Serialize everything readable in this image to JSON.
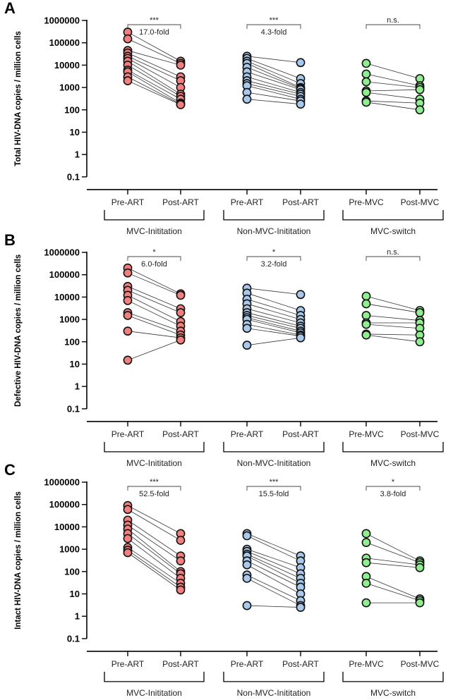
{
  "chart_data": [
    {
      "type": "scatter",
      "panel": "A",
      "ylabel": "Total HIV-DNA copies / million cells",
      "yscale": "log",
      "ylim": [
        0.1,
        1000000
      ],
      "yticks": [
        "0.1",
        "1",
        "10",
        "100",
        "1000",
        "10000",
        "100000",
        "1000000"
      ],
      "groups": [
        {
          "name": "MVC-Inititation",
          "color": "#f08080",
          "pre_label": "Pre-ART",
          "post_label": "Post-ART",
          "significance": "***",
          "fold": "17.0-fold",
          "pre": [
            300000,
            150000,
            45000,
            35000,
            25000,
            20000,
            15000,
            10000,
            6000,
            5000,
            3000,
            2000
          ],
          "post": [
            15000,
            12000,
            10000,
            3000,
            2000,
            1000,
            500,
            400,
            300,
            200,
            180,
            170
          ]
        },
        {
          "name": "Non-MVC-Inititation",
          "color": "#a8c8ec",
          "pre_label": "Pre-ART",
          "post_label": "Post-ART",
          "significance": "***",
          "fold": "4.3-fold",
          "pre": [
            25000,
            20000,
            15000,
            12000,
            8000,
            5000,
            3000,
            2000,
            1500,
            1200,
            600,
            300
          ],
          "post": [
            13000,
            2500,
            1500,
            1000,
            900,
            800,
            600,
            500,
            400,
            300,
            250,
            180
          ]
        },
        {
          "name": "MVC-switch",
          "color": "#90ee90",
          "pre_label": "Pre-MVC",
          "post_label": "Post-MVC",
          "significance": "n.s.",
          "fold": "",
          "pre": [
            12000,
            4000,
            1800,
            700,
            600,
            250,
            220
          ],
          "post": [
            2500,
            1200,
            1000,
            800,
            300,
            200,
            100
          ]
        }
      ]
    },
    {
      "type": "scatter",
      "panel": "B",
      "ylabel": "Defective HIV-DNA copies / million cells",
      "yscale": "log",
      "ylim": [
        0.1,
        1000000
      ],
      "yticks": [
        "0.1",
        "1",
        "10",
        "100",
        "1000",
        "10000",
        "100000",
        "1000000"
      ],
      "groups": [
        {
          "name": "MVC-Inititation",
          "color": "#f08080",
          "pre_label": "Pre-ART",
          "post_label": "Post-ART",
          "significance": "*",
          "fold": "6.0-fold",
          "pre": [
            200000,
            120000,
            30000,
            20000,
            12000,
            7000,
            2000,
            1500,
            300,
            15
          ],
          "post": [
            14000,
            12000,
            3000,
            2000,
            800,
            500,
            300,
            200,
            150,
            120
          ]
        },
        {
          "name": "Non-MVC-Inititation",
          "color": "#a8c8ec",
          "pre_label": "Pre-ART",
          "post_label": "Post-ART",
          "significance": "*",
          "fold": "3.2-fold",
          "pre": [
            25000,
            15000,
            8000,
            5000,
            3000,
            2000,
            1500,
            1200,
            1000,
            600,
            400,
            70
          ],
          "post": [
            13000,
            2500,
            1500,
            1000,
            700,
            500,
            400,
            300,
            250,
            200,
            180,
            150
          ]
        },
        {
          "name": "MVC-switch",
          "color": "#90ee90",
          "pre_label": "Pre-MVC",
          "post_label": "Post-MVC",
          "significance": "n.s.",
          "fold": "",
          "pre": [
            11000,
            5000,
            1500,
            700,
            600,
            220,
            200
          ],
          "post": [
            2500,
            2000,
            900,
            700,
            400,
            200,
            100
          ]
        }
      ]
    },
    {
      "type": "scatter",
      "panel": "C",
      "ylabel": "Intact HIV-DNA copies / million cells",
      "yscale": "log",
      "ylim": [
        0.1,
        1000000
      ],
      "yticks": [
        "0.1",
        "1",
        "10",
        "100",
        "1000",
        "10000",
        "100000",
        "1000000"
      ],
      "groups": [
        {
          "name": "MVC-Inititation",
          "color": "#f08080",
          "pre_label": "Pre-ART",
          "post_label": "Post-ART",
          "significance": "***",
          "fold": "52.5-fold",
          "pre": [
            90000,
            60000,
            20000,
            12000,
            8000,
            5000,
            3000,
            1200,
            900,
            700
          ],
          "post": [
            5000,
            2500,
            500,
            300,
            100,
            80,
            50,
            30,
            20,
            15
          ]
        },
        {
          "name": "Non-MVC-Inititation",
          "color": "#a8c8ec",
          "pre_label": "Pre-ART",
          "post_label": "Post-ART",
          "significance": "***",
          "fold": "15.5-fold",
          "pre": [
            5000,
            4000,
            1000,
            800,
            600,
            500,
            300,
            200,
            70,
            50,
            3
          ],
          "post": [
            500,
            300,
            150,
            80,
            50,
            30,
            20,
            10,
            5,
            3,
            2.5
          ]
        },
        {
          "name": "MVC-switch",
          "color": "#90ee90",
          "pre_label": "Pre-MVC",
          "post_label": "Post-MVC",
          "significance": "*",
          "fold": "3.8-fold",
          "pre": [
            5000,
            2000,
            400,
            250,
            60,
            30,
            4
          ],
          "post": [
            300,
            250,
            200,
            150,
            6,
            5,
            4
          ]
        }
      ]
    }
  ]
}
